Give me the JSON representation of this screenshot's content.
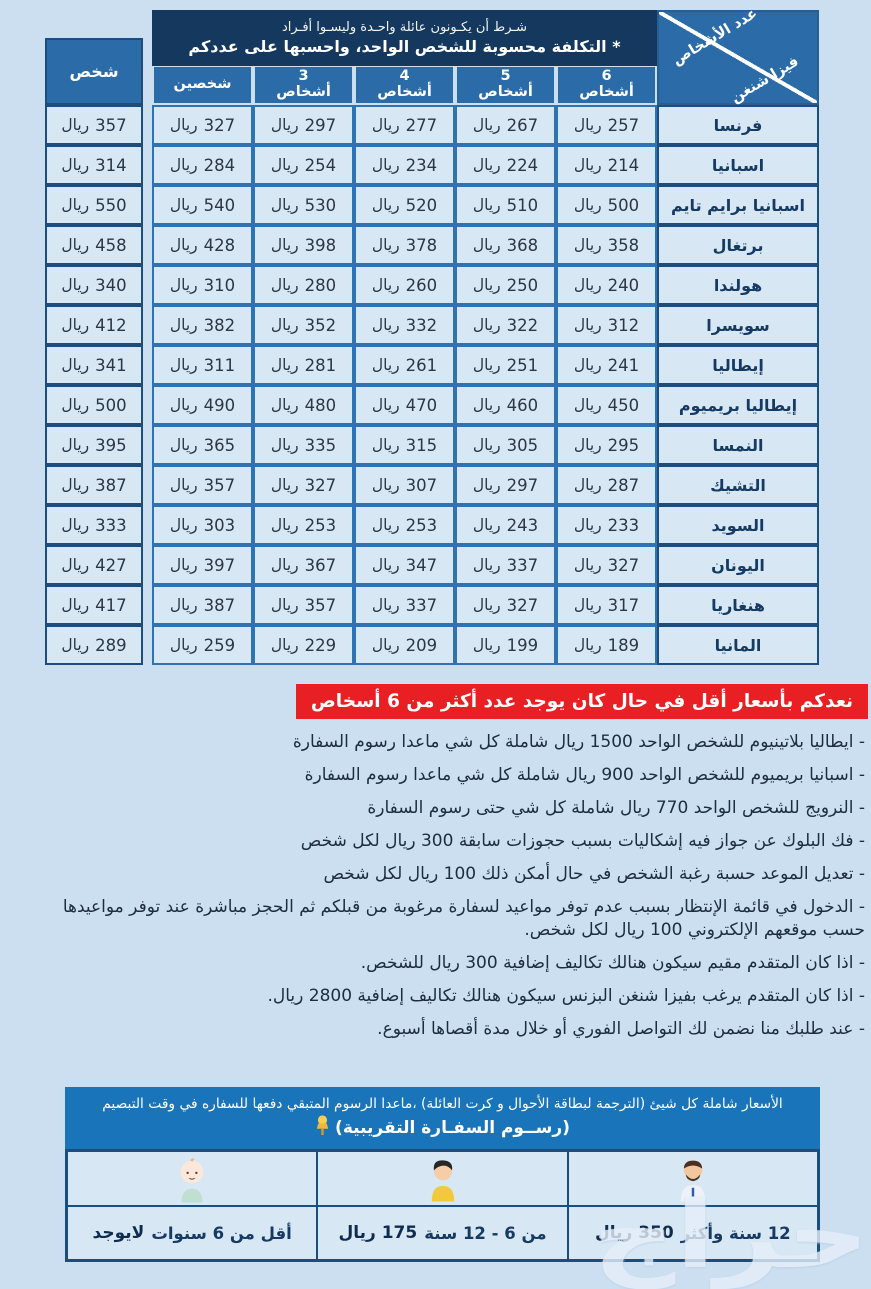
{
  "top_banner": {
    "line1": "شـرط أن يكـونون عائلة واحـدة وليسـوا أفـراد",
    "line2": "* التكلفة محسوبة للشخص الواحد، واحسبها على عددكم"
  },
  "corner": {
    "top_label": "عدد الأشخاص",
    "bottom_label": "فيزا شنغن"
  },
  "columns": {
    "single": "شخص",
    "multi": [
      {
        "count": "6",
        "word": "أشخاص"
      },
      {
        "count": "5",
        "word": "أشخاص"
      },
      {
        "count": "4",
        "word": "أشخاص"
      },
      {
        "count": "3",
        "word": "أشخاص"
      },
      {
        "count": "شخصين",
        "word": ""
      }
    ],
    "currency": "ريال"
  },
  "rows": [
    {
      "country": "فرنسا",
      "p6": 257,
      "p5": 267,
      "p4": 277,
      "p3": 297,
      "p2": 327,
      "p1": 357
    },
    {
      "country": "اسبانيا",
      "p6": 214,
      "p5": 224,
      "p4": 234,
      "p3": 254,
      "p2": 284,
      "p1": 314
    },
    {
      "country": "اسبانيا برايم تايم",
      "p6": 500,
      "p5": 510,
      "p4": 520,
      "p3": 530,
      "p2": 540,
      "p1": 550
    },
    {
      "country": "برتغال",
      "p6": 358,
      "p5": 368,
      "p4": 378,
      "p3": 398,
      "p2": 428,
      "p1": 458
    },
    {
      "country": "هولندا",
      "p6": 240,
      "p5": 250,
      "p4": 260,
      "p3": 280,
      "p2": 310,
      "p1": 340
    },
    {
      "country": "سويسرا",
      "p6": 312,
      "p5": 322,
      "p4": 332,
      "p3": 352,
      "p2": 382,
      "p1": 412
    },
    {
      "country": "إيطاليا",
      "p6": 241,
      "p5": 251,
      "p4": 261,
      "p3": 281,
      "p2": 311,
      "p1": 341
    },
    {
      "country": "إيطاليا بريميوم",
      "p6": 450,
      "p5": 460,
      "p4": 470,
      "p3": 480,
      "p2": 490,
      "p1": 500
    },
    {
      "country": "النمسا",
      "p6": 295,
      "p5": 305,
      "p4": 315,
      "p3": 335,
      "p2": 365,
      "p1": 395
    },
    {
      "country": "التشيك",
      "p6": 287,
      "p5": 297,
      "p4": 307,
      "p3": 327,
      "p2": 357,
      "p1": 387
    },
    {
      "country": "السويد",
      "p6": 233,
      "p5": 243,
      "p4": 253,
      "p3": 253,
      "p2": 303,
      "p1": 333
    },
    {
      "country": "اليونان",
      "p6": 327,
      "p5": 337,
      "p4": 347,
      "p3": 367,
      "p2": 397,
      "p1": 427
    },
    {
      "country": "هنغاريا",
      "p6": 317,
      "p5": 327,
      "p4": 337,
      "p3": 357,
      "p2": 387,
      "p1": 417
    },
    {
      "country": "المانيا",
      "p6": 189,
      "p5": 199,
      "p4": 209,
      "p3": 229,
      "p2": 259,
      "p1": 289
    }
  ],
  "promo_banner": {
    "text": "نعدكم بأسعار أقل في حال كان يوجد عدد أكثر من 6 أسخاص",
    "bg": "#e81f23"
  },
  "notes": [
    "- ايطاليا بلاتينيوم للشخص الواحد 1500 ريال شاملة كل شي ماعدا رسوم السفارة",
    "- اسبانيا بريميوم للشخص الواحد 900 ريال شاملة كل شي ماعدا رسوم السفارة",
    "- النرويج للشخص الواحد 770 ريال شاملة كل شي حتى رسوم السفارة",
    "- فك البلوك عن جواز فيه إشكاليات بسبب حجوزات سابقة 300 ريال لكل شخص",
    "- تعديل الموعد حسبة رغبة الشخص في حال أمكن ذلك 100 ريال لكل شخص",
    "- الدخول في قائمة الإنتظار بسبب عدم توفر مواعيد لسفارة مرغوبة من قبلكم ثم الحجز مباشرة عند توفر مواعيدها حسب موقعهم الإلكتروني 100 ريال لكل شخص.",
    "- اذا كان المتقدم مقيم سيكون هنالك تكاليف إضافية 300 ريال للشخص.",
    "- اذا كان المتقدم يرغب بفيزا شنغن البزنس سيكون هنالك تكاليف إضافية 2800 ريال.",
    "- عند طلبك منا نضمن لك التواصل الفوري أو خلال مدة أقصاها أسبوع."
  ],
  "footer": {
    "banner_line1": "الأسعار شاملة كل شيئ (الترجمة لبطاقة الأحوال و كرت العائلة) ،ماعدا الرسوم المتبقي دفعها للسفاره في وقت التبصيم",
    "banner_line2": "(رســوم السفـارة التقريبية)",
    "pin_icon": "pushpin-icon",
    "age_groups": [
      {
        "icon": "man-icon",
        "age": "12 سنة وأكثر",
        "price": "350 ريال"
      },
      {
        "icon": "boy-icon",
        "age": "من 6 - 12 سنة",
        "price": "175 ريال"
      },
      {
        "icon": "baby-icon",
        "age": "أقل من 6 سنوات",
        "price": "لايوجد"
      }
    ]
  },
  "watermark": "حراج",
  "colors": {
    "page_bg": "#cbdff0",
    "banner_navy": "#15385e",
    "header_blue": "#2b6ba7",
    "cell_bg": "#d8e7f4",
    "cell_border": "#2e74b2",
    "dark_border": "#1a4d80",
    "promo_red": "#e81f23",
    "footer_blue": "#1a74ba"
  }
}
